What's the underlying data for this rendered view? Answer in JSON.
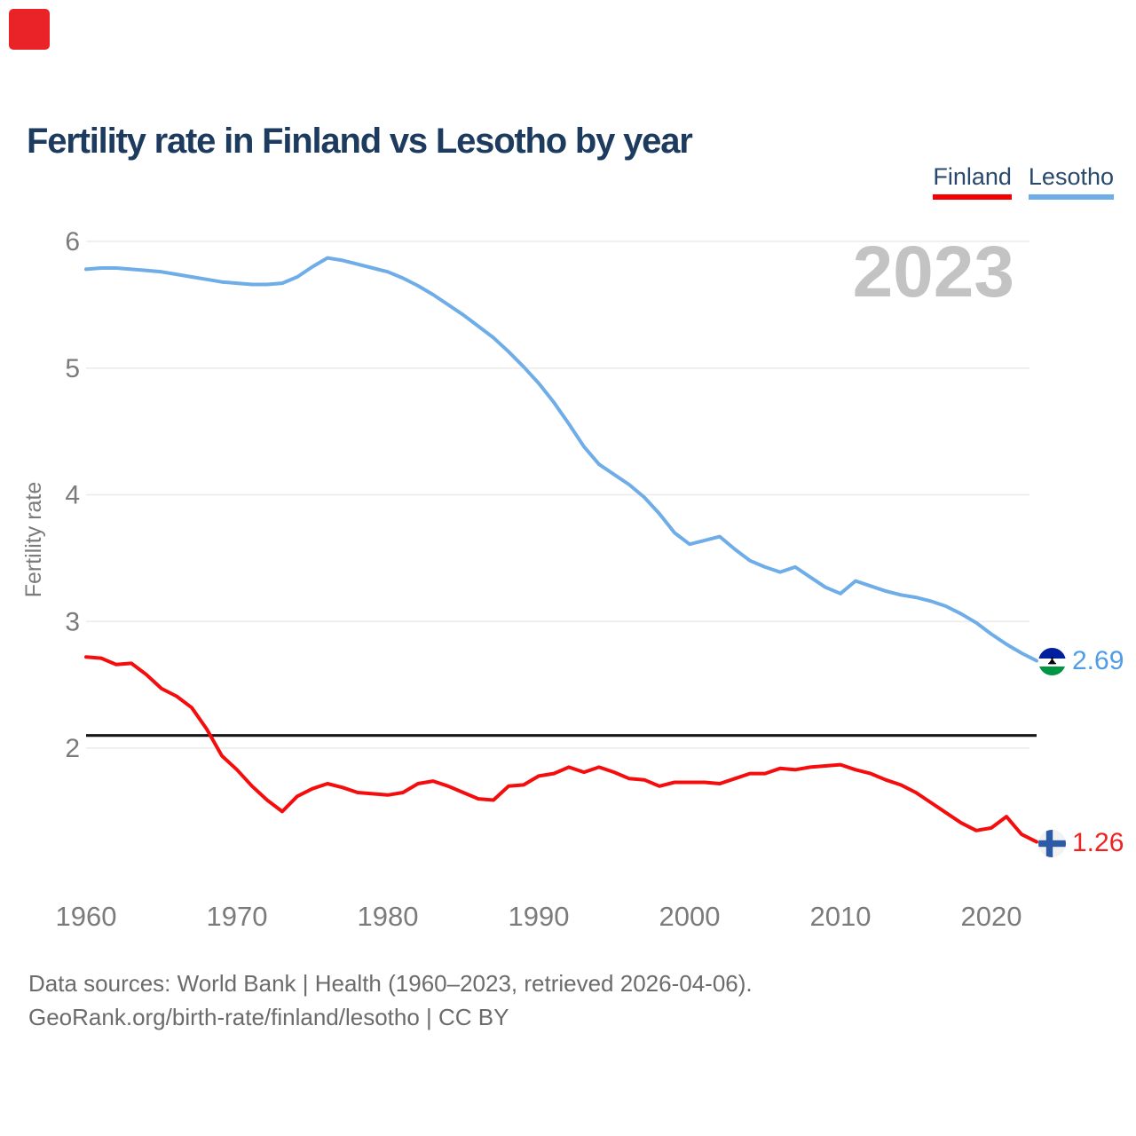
{
  "logo": {
    "color": "#ea2328"
  },
  "header": {
    "title": "Fertility rate in Finland vs Lesotho by year"
  },
  "legend": {
    "items": [
      {
        "label": "Finland",
        "color": "#f40000"
      },
      {
        "label": "Lesotho",
        "color": "#6fade8"
      }
    ]
  },
  "watermark_year": "2023",
  "chart_data": {
    "type": "line",
    "title": "Fertility rate in Finland vs Lesotho by year",
    "xlabel": "",
    "ylabel": "Fertility rate",
    "xlim": [
      1960,
      2023
    ],
    "ylim": [
      1.1,
      6.1
    ],
    "yticks": [
      2,
      3,
      4,
      5,
      6
    ],
    "xticks": [
      1960,
      1970,
      1980,
      1990,
      2000,
      2010,
      2020
    ],
    "grid": "horizontal",
    "legend_position": "top-right",
    "reference_line": {
      "value": 2.1,
      "color": "#161616"
    },
    "x": [
      1960,
      1961,
      1962,
      1963,
      1964,
      1965,
      1966,
      1967,
      1968,
      1969,
      1970,
      1971,
      1972,
      1973,
      1974,
      1975,
      1976,
      1977,
      1978,
      1979,
      1980,
      1981,
      1982,
      1983,
      1984,
      1985,
      1986,
      1987,
      1988,
      1989,
      1990,
      1991,
      1992,
      1993,
      1994,
      1995,
      1996,
      1997,
      1998,
      1999,
      2000,
      2001,
      2002,
      2003,
      2004,
      2005,
      2006,
      2007,
      2008,
      2009,
      2010,
      2011,
      2012,
      2013,
      2014,
      2015,
      2016,
      2017,
      2018,
      2019,
      2020,
      2021,
      2022,
      2023
    ],
    "series": [
      {
        "name": "Lesotho",
        "color": "#6fade8",
        "values": [
          5.78,
          5.79,
          5.79,
          5.78,
          5.77,
          5.76,
          5.74,
          5.72,
          5.7,
          5.68,
          5.67,
          5.66,
          5.66,
          5.67,
          5.72,
          5.8,
          5.87,
          5.85,
          5.82,
          5.79,
          5.76,
          5.71,
          5.65,
          5.58,
          5.5,
          5.42,
          5.33,
          5.24,
          5.13,
          5.01,
          4.88,
          4.73,
          4.56,
          4.38,
          4.24,
          4.16,
          4.08,
          3.98,
          3.85,
          3.7,
          3.61,
          3.64,
          3.67,
          3.57,
          3.48,
          3.43,
          3.39,
          3.43,
          3.35,
          3.27,
          3.22,
          3.32,
          3.28,
          3.24,
          3.21,
          3.19,
          3.16,
          3.12,
          3.06,
          2.99,
          2.9,
          2.82,
          2.75,
          2.69
        ]
      },
      {
        "name": "Finland",
        "color": "#f50d0d",
        "values": [
          2.72,
          2.71,
          2.66,
          2.67,
          2.58,
          2.47,
          2.41,
          2.32,
          2.15,
          1.94,
          1.83,
          1.7,
          1.59,
          1.5,
          1.62,
          1.68,
          1.72,
          1.69,
          1.65,
          1.64,
          1.63,
          1.65,
          1.72,
          1.74,
          1.7,
          1.65,
          1.6,
          1.59,
          1.7,
          1.71,
          1.78,
          1.8,
          1.85,
          1.81,
          1.85,
          1.81,
          1.76,
          1.75,
          1.7,
          1.73,
          1.73,
          1.73,
          1.72,
          1.76,
          1.8,
          1.8,
          1.84,
          1.83,
          1.85,
          1.86,
          1.87,
          1.83,
          1.8,
          1.75,
          1.71,
          1.65,
          1.57,
          1.49,
          1.41,
          1.35,
          1.37,
          1.46,
          1.32,
          1.26
        ]
      }
    ],
    "end_labels": [
      {
        "series": "Lesotho",
        "value": "2.69",
        "flag": "lesotho-flag-icon",
        "text_color": "#4f9de6"
      },
      {
        "series": "Finland",
        "value": "1.26",
        "flag": "finland-flag-icon",
        "text_color": "#ef2222"
      }
    ]
  },
  "footer": {
    "line1": "Data sources: World Bank | Health (1960–2023, retrieved 2026-04-06).",
    "line2": "GeoRank.org/birth-rate/finland/lesotho | CC BY"
  }
}
